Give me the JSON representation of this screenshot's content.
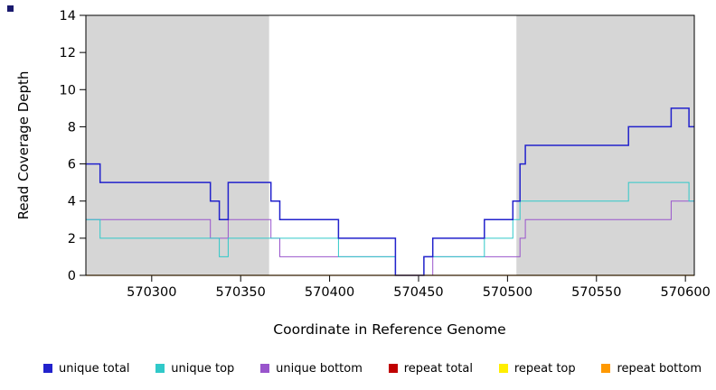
{
  "corner_marker": {
    "color": "#1a1a6e"
  },
  "chart_data": {
    "type": "line",
    "subtype": "step",
    "title": "",
    "xlabel": "Coordinate in Reference Genome",
    "ylabel": "Read Coverage Depth",
    "xlim": [
      570263,
      570605
    ],
    "ylim": [
      0,
      14
    ],
    "x_ticks": [
      570300,
      570350,
      570400,
      570450,
      570500,
      570550,
      570600
    ],
    "y_ticks": [
      0,
      2,
      4,
      6,
      8,
      10,
      12,
      14
    ],
    "grid": false,
    "shaded_regions": [
      {
        "name": "repeat-region-left",
        "x0": 570263,
        "x1": 570366,
        "color": "#d6d6d6"
      },
      {
        "name": "repeat-region-right",
        "x0": 570505,
        "x1": 570605,
        "color": "#d6d6d6"
      }
    ],
    "series": [
      {
        "name": "unique bottom",
        "color": "#9955cc",
        "width": 1,
        "points": [
          [
            570263,
            3
          ],
          [
            570333,
            2
          ],
          [
            570343,
            3
          ],
          [
            570367,
            2
          ],
          [
            570372,
            1
          ],
          [
            570437,
            0
          ],
          [
            570458,
            1
          ],
          [
            570507,
            2
          ],
          [
            570510,
            3
          ],
          [
            570592,
            4
          ]
        ]
      },
      {
        "name": "unique top",
        "color": "#30c9c9",
        "width": 1,
        "points": [
          [
            570263,
            3
          ],
          [
            570271,
            2
          ],
          [
            570338,
            1
          ],
          [
            570343,
            2
          ],
          [
            570405,
            1
          ],
          [
            570437,
            0
          ],
          [
            570453,
            1
          ],
          [
            570487,
            2
          ],
          [
            570503,
            3
          ],
          [
            570507,
            4
          ],
          [
            570568,
            5
          ],
          [
            570602,
            4
          ]
        ]
      },
      {
        "name": "unique total",
        "color": "#2222cc",
        "width": 1.5,
        "points": [
          [
            570263,
            6
          ],
          [
            570271,
            5
          ],
          [
            570333,
            4
          ],
          [
            570338,
            3
          ],
          [
            570343,
            5
          ],
          [
            570367,
            4
          ],
          [
            570372,
            3
          ],
          [
            570405,
            2
          ],
          [
            570437,
            0
          ],
          [
            570453,
            1
          ],
          [
            570458,
            2
          ],
          [
            570487,
            3
          ],
          [
            570503,
            4
          ],
          [
            570507,
            6
          ],
          [
            570510,
            7
          ],
          [
            570568,
            8
          ],
          [
            570592,
            9
          ],
          [
            570602,
            8
          ]
        ]
      },
      {
        "name": "repeat total",
        "color": "#c00000",
        "width": 1,
        "points": [
          [
            570263,
            0
          ]
        ]
      },
      {
        "name": "repeat top",
        "color": "#ffee00",
        "width": 1,
        "points": [
          [
            570263,
            0
          ]
        ]
      },
      {
        "name": "repeat bottom",
        "color": "#ff9900",
        "width": 1.2,
        "points": [
          [
            570263,
            0
          ]
        ]
      }
    ],
    "legend_position": "bottom",
    "legend": [
      {
        "label": "unique total",
        "color": "#2222cc"
      },
      {
        "label": "unique top",
        "color": "#30c9c9"
      },
      {
        "label": "unique bottom",
        "color": "#9955cc"
      },
      {
        "label": "repeat total",
        "color": "#c00000"
      },
      {
        "label": "repeat top",
        "color": "#ffee00"
      },
      {
        "label": "repeat bottom",
        "color": "#ff9900"
      }
    ]
  }
}
